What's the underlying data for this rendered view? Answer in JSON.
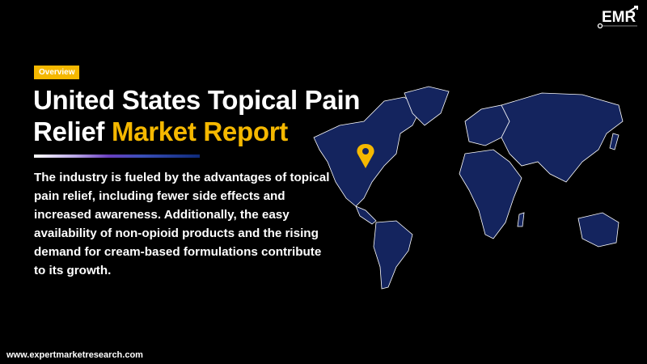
{
  "badge": "Overview",
  "title": {
    "line1": "United States Topical Pain",
    "line2_plain": "Relief",
    "line2_highlight": "Market Report"
  },
  "description": "The industry is fueled by the advantages of topical pain relief, including fewer side effects and increased awareness. Additionally, the easy availability of non-opioid products and the rising demand for cream-based formulations contribute to its growth.",
  "footer": {
    "url": "www.expertmarketresearch.com"
  },
  "logo": {
    "text": "EMR"
  },
  "map": {
    "marker": "location-pin-icon",
    "marker_color": "#f5b800",
    "land_color": "#14245e",
    "border_color": "#ffffff"
  },
  "colors": {
    "accent": "#f5b800",
    "background": "#000000"
  }
}
